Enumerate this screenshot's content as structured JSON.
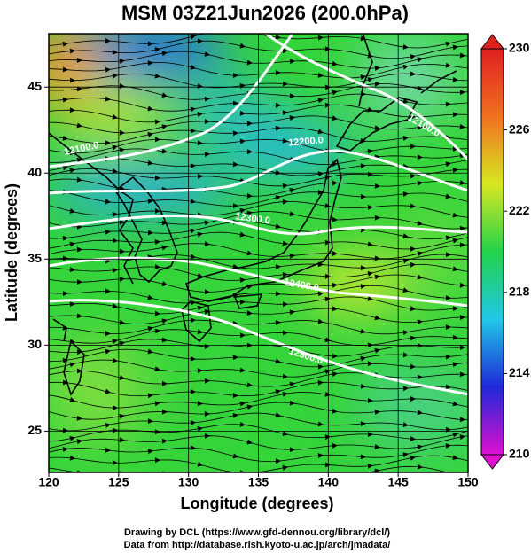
{
  "chart_data": {
    "type": "map",
    "title": "MSM 03Z21Jun2026 (200.0hPa)",
    "x_label": "Longitude (degrees)",
    "y_label": "Latitude  (degrees)",
    "xlim": [
      120,
      150
    ],
    "xticks": [
      120,
      125,
      130,
      135,
      140,
      145,
      150
    ],
    "ylim": [
      22.6,
      48.1
    ],
    "yticks": [
      25,
      30,
      35,
      40,
      45
    ],
    "grid": true,
    "clim": [
      210,
      230
    ],
    "cticks": [
      210,
      214,
      218,
      222,
      226,
      230
    ],
    "colormap": [
      "#e010d0",
      "#1e28d8",
      "#20c8e8",
      "#22d24a",
      "#d8e820",
      "#f07020",
      "#e02020"
    ],
    "contour_labels": [
      "12100.0",
      "12100.0",
      "12200.0",
      "12300.0",
      "12400.0",
      "12500.0"
    ],
    "footer": [
      "Drawing by DCL (https://www.gfd-dennou.org/library/dcl/)",
      "Data from http://database.rish.kyoto-u.ac.jp/arch/jmadata/"
    ]
  }
}
